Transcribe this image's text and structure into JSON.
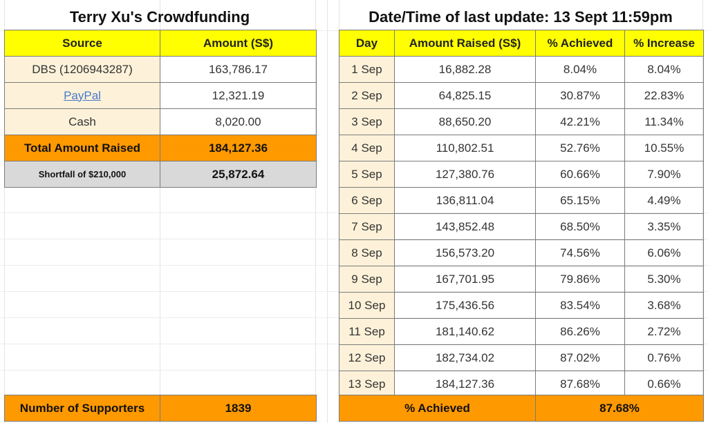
{
  "left": {
    "title": "Terry Xu's Crowdfunding",
    "headers": {
      "source": "Source",
      "amount": "Amount (S$)"
    },
    "rows": [
      {
        "source": "DBS (1206943287)",
        "amount": "163,786.17"
      },
      {
        "source": "PayPal",
        "amount": "12,321.19"
      },
      {
        "source": "Cash",
        "amount": "8,020.00"
      }
    ],
    "total": {
      "label": "Total Amount Raised",
      "amount": "184,127.36"
    },
    "shortfall": {
      "label": "Shortfall of $210,000",
      "amount": "25,872.64"
    },
    "supporters": {
      "label": "Number of Supporters",
      "value": "1839"
    }
  },
  "right": {
    "title": "Date/Time of last update: 13 Sept 11:59pm",
    "headers": {
      "day": "Day",
      "amount": "Amount Raised (S$)",
      "achieved": "% Achieved",
      "increase": "% Increase"
    },
    "rows": [
      {
        "day": "1 Sep",
        "amount": "16,882.28",
        "achieved": "8.04%",
        "increase": "8.04%"
      },
      {
        "day": "2 Sep",
        "amount": "64,825.15",
        "achieved": "30.87%",
        "increase": "22.83%"
      },
      {
        "day": "3 Sep",
        "amount": "88,650.20",
        "achieved": "42.21%",
        "increase": "11.34%"
      },
      {
        "day": "4 Sep",
        "amount": "110,802.51",
        "achieved": "52.76%",
        "increase": "10.55%"
      },
      {
        "day": "5 Sep",
        "amount": "127,380.76",
        "achieved": "60.66%",
        "increase": "7.90%"
      },
      {
        "day": "6 Sep",
        "amount": "136,811.04",
        "achieved": "65.15%",
        "increase": "4.49%"
      },
      {
        "day": "7 Sep",
        "amount": "143,852.48",
        "achieved": "68.50%",
        "increase": "3.35%"
      },
      {
        "day": "8 Sep",
        "amount": "156,573.20",
        "achieved": "74.56%",
        "increase": "6.06%"
      },
      {
        "day": "9 Sep",
        "amount": "167,701.95",
        "achieved": "79.86%",
        "increase": "5.30%"
      },
      {
        "day": "10 Sep",
        "amount": "175,436.56",
        "achieved": "83.54%",
        "increase": "3.68%"
      },
      {
        "day": "11 Sep",
        "amount": "181,140.62",
        "achieved": "86.26%",
        "increase": "2.72%"
      },
      {
        "day": "12 Sep",
        "amount": "182,734.02",
        "achieved": "87.02%",
        "increase": "0.76%"
      },
      {
        "day": "13 Sep",
        "amount": "184,127.36",
        "achieved": "87.68%",
        "increase": "0.66%"
      }
    ],
    "footer": {
      "label": "% Achieved",
      "value": "87.68%"
    }
  }
}
